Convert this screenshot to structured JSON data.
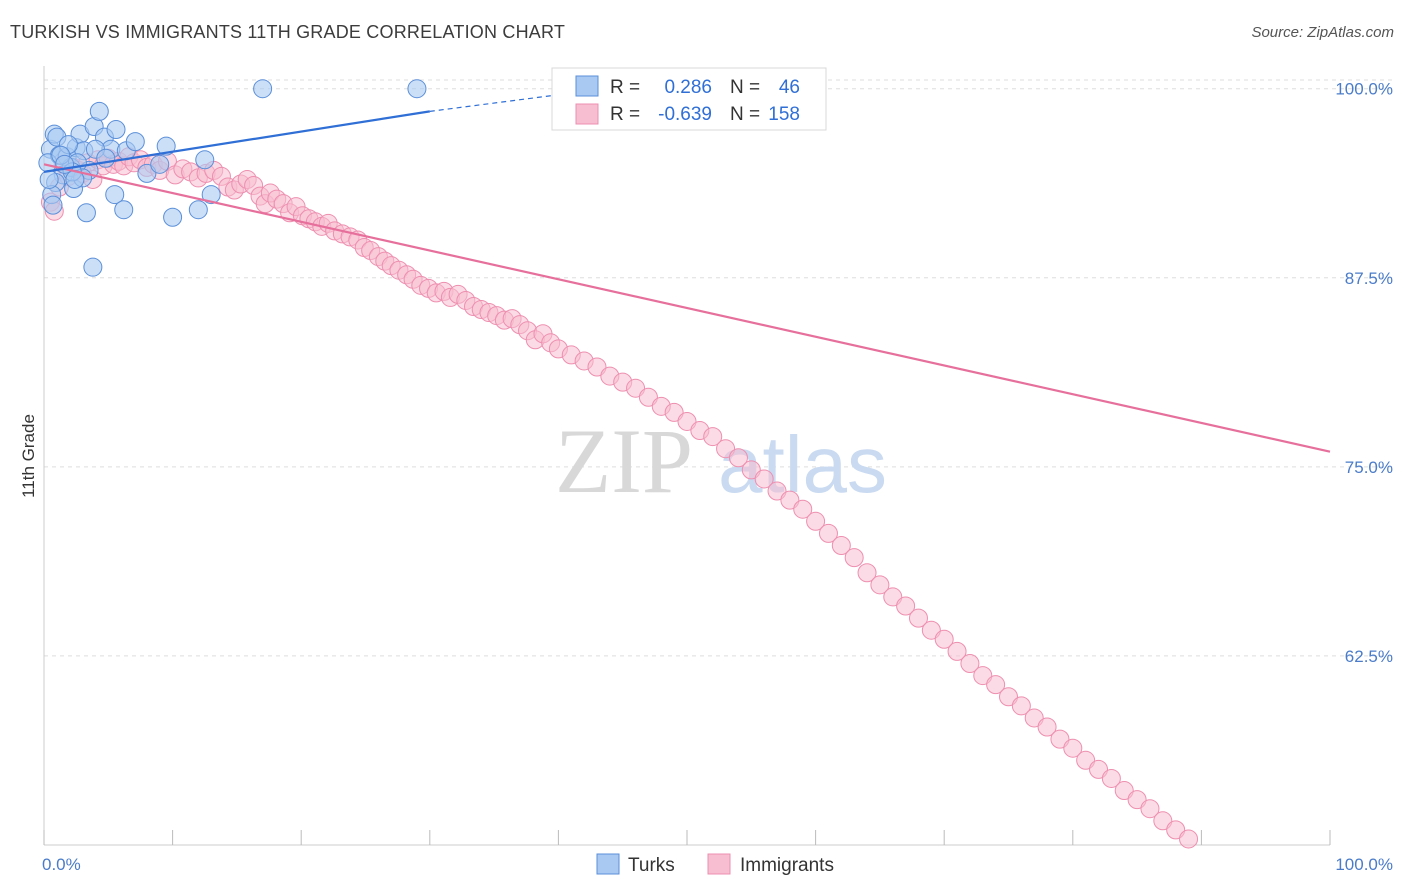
{
  "title": "TURKISH VS IMMIGRANTS 11TH GRADE CORRELATION CHART",
  "source": "Source: ZipAtlas.com",
  "colors": {
    "turks_fill": "#a9c9f2",
    "turks_stroke": "#5b8fd9",
    "turks_line": "#2f6fd6",
    "immigrants_fill": "#f7bdd0",
    "immigrants_stroke": "#ee8fb0",
    "immigrants_line": "#e6709b",
    "tick_label": "#4a7cc9",
    "grid": "#dddddd"
  },
  "legend": {
    "r_label": "R =",
    "n_label": "N =",
    "rows": [
      {
        "r": "0.286",
        "n": "46"
      },
      {
        "r": "-0.639",
        "n": "158"
      }
    ]
  },
  "watermark": {
    "zip": "ZIP",
    "atlas": "atlas"
  },
  "chart_data": {
    "type": "scatter",
    "title": "TURKISH VS IMMIGRANTS 11TH GRADE CORRELATION CHART",
    "xlabel": "",
    "ylabel": "11th Grade",
    "xlim": [
      0,
      100
    ],
    "ylim": [
      50,
      101.5
    ],
    "x_tick_labels": [
      "0.0%",
      "100.0%"
    ],
    "y_ticks": [
      62.5,
      75.0,
      87.5,
      100.0
    ],
    "y_tick_labels": [
      "62.5%",
      "75.0%",
      "87.5%",
      "100.0%"
    ],
    "grid": true,
    "legend_position": "top-center",
    "series": [
      {
        "name": "Turks",
        "r": 0.286,
        "n": 46,
        "trend": {
          "x": [
            0,
            30
          ],
          "y": [
            94.5,
            98.5
          ],
          "dashed_to": [
            40,
            99.6
          ]
        },
        "points": [
          [
            0.5,
            96.0
          ],
          [
            0.8,
            97.0
          ],
          [
            1.2,
            95.6
          ],
          [
            1.5,
            94.3
          ],
          [
            0.9,
            93.8
          ],
          [
            0.6,
            93.0
          ],
          [
            1.8,
            95.5
          ],
          [
            2.1,
            94.8
          ],
          [
            2.5,
            96.1
          ],
          [
            2.8,
            97.0
          ],
          [
            3.1,
            95.9
          ],
          [
            3.5,
            94.6
          ],
          [
            3.9,
            97.5
          ],
          [
            4.3,
            98.5
          ],
          [
            4.7,
            96.8
          ],
          [
            5.2,
            96.0
          ],
          [
            5.6,
            97.3
          ],
          [
            6.4,
            95.9
          ],
          [
            7.1,
            96.5
          ],
          [
            8.0,
            94.4
          ],
          [
            9.0,
            95.0
          ],
          [
            2.3,
            93.4
          ],
          [
            3.3,
            91.8
          ],
          [
            3.8,
            88.2
          ],
          [
            5.5,
            93.0
          ],
          [
            6.2,
            92.0
          ],
          [
            12.0,
            92.0
          ],
          [
            13.0,
            93.0
          ],
          [
            17.0,
            100.0
          ],
          [
            29.0,
            100.0
          ],
          [
            1.0,
            96.8
          ],
          [
            1.9,
            96.3
          ],
          [
            2.6,
            95.1
          ],
          [
            3.0,
            94.1
          ],
          [
            4.0,
            96.0
          ],
          [
            4.8,
            95.4
          ],
          [
            0.3,
            95.1
          ],
          [
            0.4,
            94.0
          ],
          [
            1.3,
            95.6
          ],
          [
            2.2,
            94.5
          ],
          [
            9.5,
            96.2
          ],
          [
            12.5,
            95.3
          ],
          [
            1.6,
            95.0
          ],
          [
            2.4,
            94.0
          ],
          [
            0.7,
            92.3
          ],
          [
            10.0,
            91.5
          ]
        ]
      },
      {
        "name": "Immigrants",
        "r": -0.639,
        "n": 158,
        "trend": {
          "x": [
            0,
            100
          ],
          "y": [
            95.0,
            76.0
          ]
        },
        "points": [
          [
            0.5,
            92.5
          ],
          [
            0.8,
            91.9
          ],
          [
            1.2,
            93.5
          ],
          [
            1.5,
            95.0
          ],
          [
            1.9,
            94.2
          ],
          [
            2.3,
            94.8
          ],
          [
            2.7,
            94.6
          ],
          [
            3.0,
            94.4
          ],
          [
            3.4,
            95.1
          ],
          [
            3.8,
            94.0
          ],
          [
            4.2,
            95.3
          ],
          [
            4.6,
            94.9
          ],
          [
            5.0,
            95.4
          ],
          [
            5.4,
            95.0
          ],
          [
            5.8,
            95.2
          ],
          [
            6.2,
            94.9
          ],
          [
            6.6,
            95.5
          ],
          [
            7.0,
            95.1
          ],
          [
            7.5,
            95.3
          ],
          [
            8.0,
            94.8
          ],
          [
            8.5,
            95.0
          ],
          [
            9.0,
            94.6
          ],
          [
            9.6,
            95.2
          ],
          [
            10.2,
            94.3
          ],
          [
            10.8,
            94.7
          ],
          [
            11.4,
            94.5
          ],
          [
            12.0,
            94.1
          ],
          [
            12.6,
            94.4
          ],
          [
            13.2,
            94.6
          ],
          [
            13.8,
            94.2
          ],
          [
            14.3,
            93.5
          ],
          [
            14.8,
            93.3
          ],
          [
            15.3,
            93.7
          ],
          [
            15.8,
            94.0
          ],
          [
            16.3,
            93.6
          ],
          [
            16.8,
            92.9
          ],
          [
            17.2,
            92.4
          ],
          [
            17.6,
            93.1
          ],
          [
            18.1,
            92.7
          ],
          [
            18.6,
            92.4
          ],
          [
            19.1,
            91.8
          ],
          [
            19.6,
            92.2
          ],
          [
            20.1,
            91.6
          ],
          [
            20.6,
            91.4
          ],
          [
            21.1,
            91.2
          ],
          [
            21.6,
            90.9
          ],
          [
            22.1,
            91.1
          ],
          [
            22.6,
            90.6
          ],
          [
            23.2,
            90.4
          ],
          [
            23.8,
            90.2
          ],
          [
            24.4,
            90.0
          ],
          [
            24.9,
            89.5
          ],
          [
            25.4,
            89.3
          ],
          [
            26.0,
            88.9
          ],
          [
            26.5,
            88.6
          ],
          [
            27.0,
            88.3
          ],
          [
            27.6,
            88.0
          ],
          [
            28.2,
            87.7
          ],
          [
            28.7,
            87.4
          ],
          [
            29.3,
            87.0
          ],
          [
            29.9,
            86.8
          ],
          [
            30.5,
            86.5
          ],
          [
            31.1,
            86.6
          ],
          [
            31.6,
            86.2
          ],
          [
            32.2,
            86.4
          ],
          [
            32.8,
            86.0
          ],
          [
            33.4,
            85.6
          ],
          [
            34.0,
            85.4
          ],
          [
            34.6,
            85.2
          ],
          [
            35.2,
            85.0
          ],
          [
            35.8,
            84.7
          ],
          [
            36.4,
            84.8
          ],
          [
            37.0,
            84.4
          ],
          [
            37.6,
            84.0
          ],
          [
            38.2,
            83.4
          ],
          [
            38.8,
            83.8
          ],
          [
            39.4,
            83.2
          ],
          [
            40.0,
            82.8
          ],
          [
            41.0,
            82.4
          ],
          [
            42.0,
            82.0
          ],
          [
            43.0,
            81.6
          ],
          [
            44.0,
            81.0
          ],
          [
            45.0,
            80.6
          ],
          [
            46.0,
            80.2
          ],
          [
            47.0,
            79.6
          ],
          [
            48.0,
            79.0
          ],
          [
            49.0,
            78.6
          ],
          [
            50.0,
            78.0
          ],
          [
            51.0,
            77.4
          ],
          [
            52.0,
            77.0
          ],
          [
            53.0,
            76.2
          ],
          [
            54.0,
            75.6
          ],
          [
            55.0,
            74.8
          ],
          [
            56.0,
            74.2
          ],
          [
            57.0,
            73.4
          ],
          [
            58.0,
            72.8
          ],
          [
            59.0,
            72.2
          ],
          [
            60.0,
            71.4
          ],
          [
            61.0,
            70.6
          ],
          [
            62.0,
            69.8
          ],
          [
            63.0,
            69.0
          ],
          [
            64.0,
            68.0
          ],
          [
            65.0,
            67.2
          ],
          [
            66.0,
            66.4
          ],
          [
            67.0,
            65.8
          ],
          [
            68.0,
            65.0
          ],
          [
            69.0,
            64.2
          ],
          [
            70.0,
            63.6
          ],
          [
            71.0,
            62.8
          ],
          [
            72.0,
            62.0
          ],
          [
            73.0,
            61.2
          ],
          [
            74.0,
            60.6
          ],
          [
            75.0,
            59.8
          ],
          [
            76.0,
            59.2
          ],
          [
            77.0,
            58.4
          ],
          [
            78.0,
            57.8
          ],
          [
            79.0,
            57.0
          ],
          [
            80.0,
            56.4
          ],
          [
            81.0,
            55.6
          ],
          [
            82.0,
            55.0
          ],
          [
            83.0,
            54.4
          ],
          [
            84.0,
            53.6
          ],
          [
            85.0,
            53.0
          ],
          [
            86.0,
            52.4
          ],
          [
            87.0,
            51.6
          ],
          [
            88.0,
            51.0
          ],
          [
            89.0,
            50.4
          ],
          [
            90.0,
            50.0
          ],
          [
            91.0,
            50.0
          ],
          [
            92.0,
            50.0
          ],
          [
            93.0,
            50.0
          ],
          [
            94.0,
            50.0
          ],
          [
            95.0,
            50.0
          ],
          [
            96.0,
            50.0
          ],
          [
            97.0,
            50.0
          ],
          [
            98.0,
            50.0
          ],
          [
            99.0,
            50.0
          ],
          [
            100.0,
            50.0
          ],
          [
            0.3,
            50.0
          ],
          [
            0.4,
            50.0
          ],
          [
            0.6,
            50.0
          ],
          [
            0.7,
            50.0
          ],
          [
            0.9,
            50.0
          ],
          [
            1.0,
            50.0
          ],
          [
            1.1,
            50.0
          ],
          [
            1.3,
            50.0
          ],
          [
            1.4,
            50.0
          ],
          [
            1.6,
            50.0
          ],
          [
            1.7,
            50.0
          ],
          [
            1.8,
            50.0
          ],
          [
            2.0,
            50.0
          ],
          [
            2.1,
            50.0
          ],
          [
            2.2,
            50.0
          ],
          [
            2.4,
            50.0
          ],
          [
            2.5,
            50.0
          ],
          [
            2.6,
            50.0
          ],
          [
            2.8,
            50.0
          ],
          [
            2.9,
            50.0
          ]
        ]
      }
    ]
  }
}
